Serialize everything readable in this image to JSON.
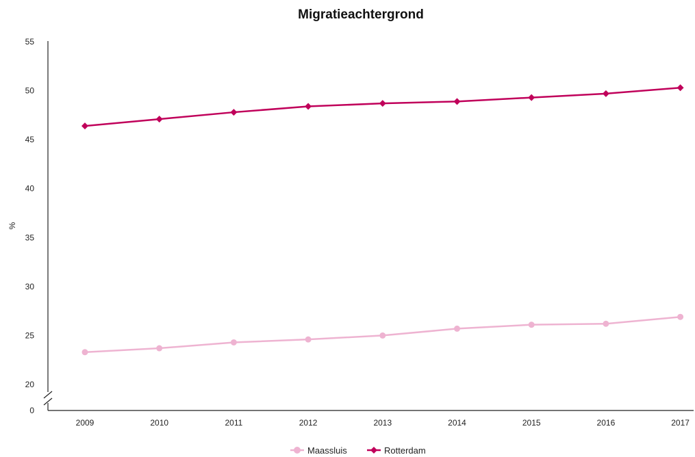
{
  "chart_data": {
    "type": "line",
    "title": "Migratieachtergrond",
    "xlabel": "",
    "ylabel": "%",
    "categories": [
      "2009",
      "2010",
      "2011",
      "2012",
      "2013",
      "2014",
      "2015",
      "2016",
      "2017"
    ],
    "y_ticks": [
      "0",
      "20",
      "25",
      "30",
      "35",
      "40",
      "45",
      "50",
      "55"
    ],
    "ylim": [
      20,
      55
    ],
    "axis_break": true,
    "grid": false,
    "legend_position": "bottom-center",
    "series": [
      {
        "name": "Maassluis",
        "color": "#eeb3d1",
        "marker": "circle",
        "values": [
          23.3,
          23.7,
          24.3,
          24.6,
          25.0,
          25.7,
          26.1,
          26.2,
          26.9
        ]
      },
      {
        "name": "Rotterdam",
        "color": "#c0005a",
        "marker": "diamond",
        "values": [
          46.4,
          47.1,
          47.8,
          48.4,
          48.7,
          48.9,
          49.3,
          49.7,
          50.3
        ]
      }
    ]
  }
}
